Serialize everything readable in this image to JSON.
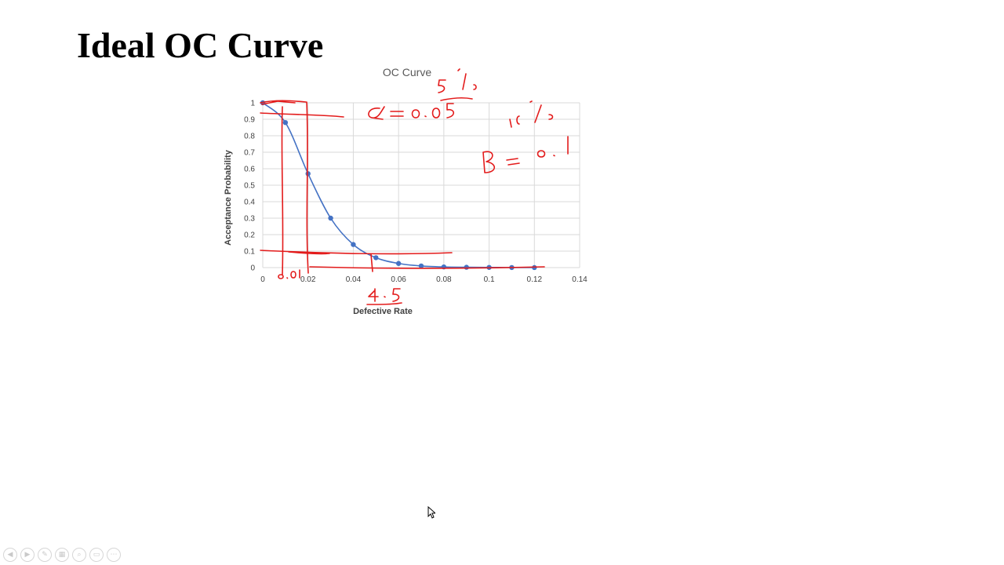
{
  "slide": {
    "title": "Ideal OC Curve"
  },
  "chart_data": {
    "type": "line",
    "title": "OC Curve",
    "xlabel": "Defective Rate",
    "ylabel": "Acceptance Probability",
    "xlim": [
      0,
      0.14
    ],
    "ylim": [
      0,
      1
    ],
    "x_ticks": [
      "0",
      "0.02",
      "0.04",
      "0.06",
      "0.08",
      "0.1",
      "0.12",
      "0.14"
    ],
    "y_ticks": [
      "0",
      "0.1",
      "0.2",
      "0.3",
      "0.4",
      "0.5",
      "0.6",
      "0.7",
      "0.8",
      "0.9",
      "1"
    ],
    "grid": true,
    "series": [
      {
        "color": "#4472c4",
        "x": [
          0,
          0.01,
          0.02,
          0.03,
          0.04,
          0.05,
          0.06,
          0.07,
          0.08,
          0.09,
          0.1,
          0.11,
          0.12
        ],
        "y": [
          1.0,
          0.88,
          0.57,
          0.3,
          0.14,
          0.06,
          0.025,
          0.01,
          0.004,
          0.002,
          0.001,
          0.0005,
          0.0002
        ]
      }
    ]
  },
  "annotations": {
    "alpha": "α = 0.05",
    "alpha_pct": "5%",
    "beta": "β = 0.1",
    "beta_pct": "10%",
    "x_mark_low": "0.01",
    "x_mark_high": "4.5"
  },
  "player": {
    "icons": [
      "prev-icon",
      "next-icon",
      "pen-icon",
      "slides-icon",
      "zoom-icon",
      "subtitle-icon",
      "more-icon"
    ]
  }
}
